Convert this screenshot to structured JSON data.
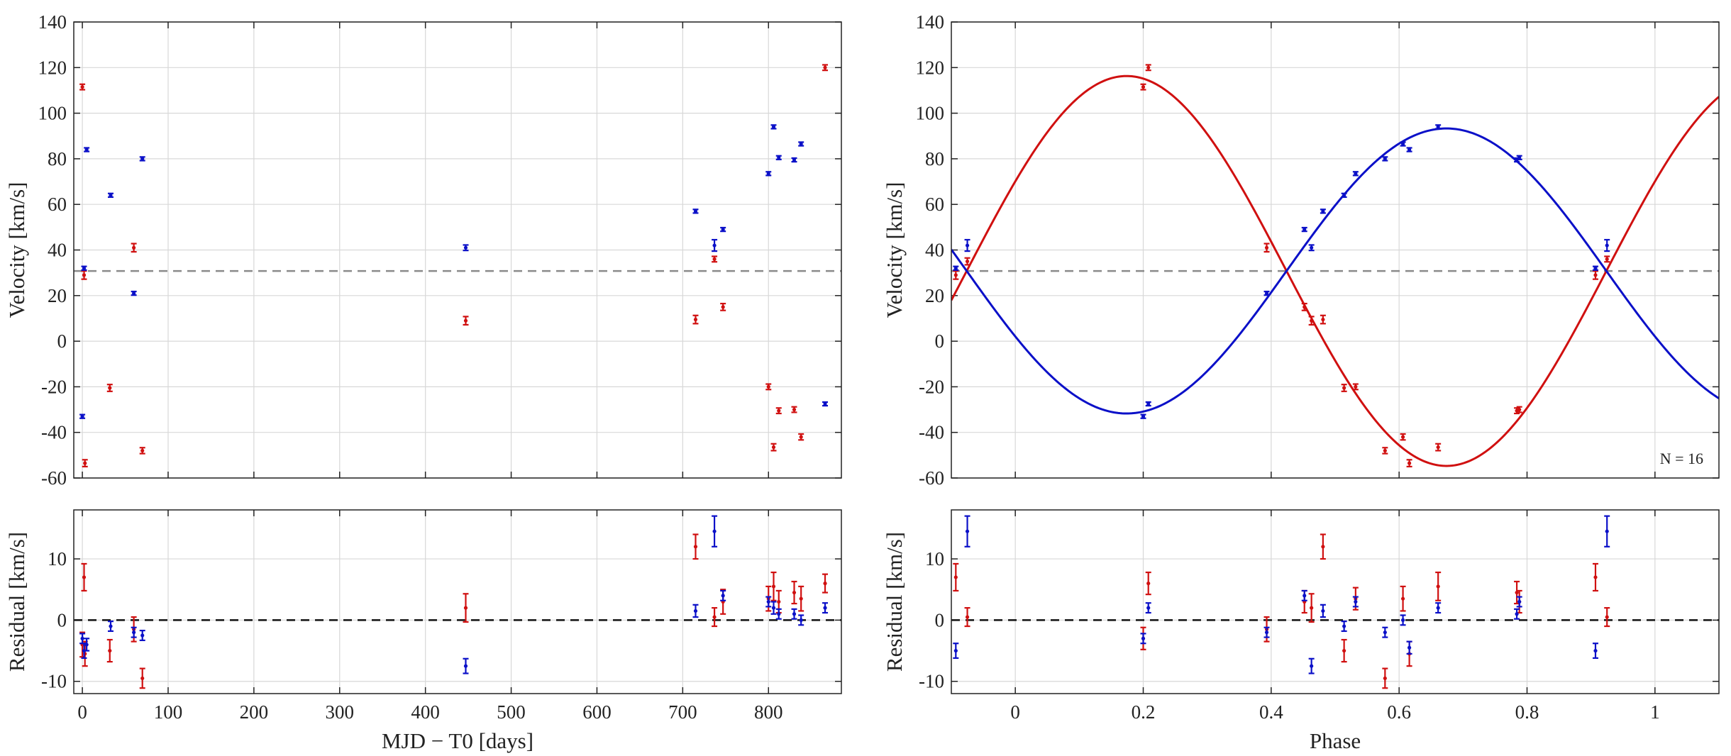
{
  "colors": {
    "primary": "#d01010",
    "secondary": "#0b10c8",
    "systemic": "#8a8a8a",
    "zero": "#111111"
  },
  "chart_data": [
    {
      "id": "rv-time",
      "type": "scatter",
      "title": "",
      "xlabel": "MJD − T0 [days]",
      "ylabel": "Velocity [km/s]",
      "xlim": [
        -10,
        885
      ],
      "ylim": [
        -60,
        140
      ],
      "xticks": [
        0,
        100,
        200,
        300,
        400,
        500,
        600,
        700,
        800
      ],
      "yticks": [
        -60,
        -40,
        -20,
        0,
        20,
        40,
        60,
        80,
        100,
        120,
        140
      ],
      "grid": true,
      "systemic_velocity": 30.8,
      "series": [
        {
          "name": "primary",
          "color": "#d01010",
          "points": [
            [
              0,
              111.5,
              1.2
            ],
            [
              2,
              29,
              1.8
            ],
            [
              3,
              -53.5,
              1.5
            ],
            [
              32,
              -20.5,
              1.5
            ],
            [
              60,
              41,
              1.8
            ],
            [
              70,
              -48,
              1.3
            ],
            [
              447,
              9,
              1.8
            ],
            [
              715,
              9.5,
              1.8
            ],
            [
              737,
              36,
              1.2
            ],
            [
              747,
              15,
              1.5
            ],
            [
              800,
              -20,
              1.2
            ],
            [
              806,
              -46.5,
              1.5
            ],
            [
              812,
              -30.5,
              1.2
            ],
            [
              830,
              -30,
              1.2
            ],
            [
              838,
              -42,
              1.3
            ],
            [
              866,
              120,
              1.2
            ]
          ]
        },
        {
          "name": "secondary",
          "color": "#0b10c8",
          "points": [
            [
              0,
              -33,
              0.8
            ],
            [
              2,
              32,
              0.8
            ],
            [
              5,
              84,
              0.8
            ],
            [
              33,
              64,
              0.8
            ],
            [
              60,
              21,
              0.8
            ],
            [
              70,
              80,
              0.8
            ],
            [
              447,
              41,
              1.2
            ],
            [
              715,
              57,
              0.8
            ],
            [
              737,
              42,
              2.5
            ],
            [
              747,
              49,
              0.8
            ],
            [
              800,
              73.5,
              0.8
            ],
            [
              806,
              94,
              0.8
            ],
            [
              812,
              80.5,
              0.8
            ],
            [
              830,
              79.5,
              0.8
            ],
            [
              838,
              86.5,
              0.8
            ],
            [
              866,
              -27.5,
              0.8
            ]
          ]
        }
      ]
    },
    {
      "id": "rv-phase",
      "type": "scatter",
      "title": "",
      "xlabel": "Phase",
      "ylabel": "Velocity [km/s]",
      "xlim": [
        -0.1,
        1.1
      ],
      "ylim": [
        -60,
        140
      ],
      "xticks": [
        0,
        0.2,
        0.4,
        0.6,
        0.8,
        1
      ],
      "yticks": [
        -60,
        -40,
        -20,
        0,
        20,
        40,
        60,
        80,
        100,
        120,
        140
      ],
      "grid": true,
      "systemic_velocity": 30.8,
      "annotation": "N = 16",
      "model": {
        "gamma": 30.8,
        "K1": 85.5,
        "K2": 62.5,
        "phase_of_min_primary": 0.674
      },
      "series": [
        {
          "name": "primary",
          "color": "#d01010",
          "points": [
            [
              -0.093,
              29,
              1.8
            ],
            [
              -0.075,
              35,
              1.5
            ],
            [
              0.2,
              111.5,
              1.2
            ],
            [
              0.208,
              120,
              1.2
            ],
            [
              0.393,
              41,
              1.8
            ],
            [
              0.452,
              15,
              1.5
            ],
            [
              0.463,
              9,
              1.8
            ],
            [
              0.481,
              9.5,
              1.8
            ],
            [
              0.514,
              -20.5,
              1.5
            ],
            [
              0.532,
              -20,
              1.2
            ],
            [
              0.578,
              -48,
              1.3
            ],
            [
              0.606,
              -42,
              1.3
            ],
            [
              0.616,
              -53.5,
              1.5
            ],
            [
              0.661,
              -46.5,
              1.5
            ],
            [
              0.784,
              -30.5,
              1.2
            ],
            [
              0.788,
              -30,
              1.2
            ],
            [
              0.907,
              29,
              1.8
            ],
            [
              0.925,
              36,
              1.2
            ]
          ]
        },
        {
          "name": "secondary",
          "color": "#0b10c8",
          "points": [
            [
              -0.093,
              32,
              0.8
            ],
            [
              -0.075,
              42,
              2.5
            ],
            [
              0.2,
              -33,
              0.8
            ],
            [
              0.208,
              -27.5,
              0.8
            ],
            [
              0.393,
              21,
              0.8
            ],
            [
              0.452,
              49,
              0.8
            ],
            [
              0.463,
              41,
              1.2
            ],
            [
              0.481,
              57,
              0.8
            ],
            [
              0.514,
              64,
              0.8
            ],
            [
              0.532,
              73.5,
              0.8
            ],
            [
              0.578,
              80,
              0.8
            ],
            [
              0.606,
              86.5,
              0.8
            ],
            [
              0.616,
              84,
              0.8
            ],
            [
              0.661,
              94,
              0.8
            ],
            [
              0.784,
              79.5,
              0.8
            ],
            [
              0.788,
              80.5,
              0.8
            ],
            [
              0.907,
              32,
              0.8
            ],
            [
              0.925,
              42,
              2.5
            ]
          ]
        }
      ]
    },
    {
      "id": "resid-time",
      "type": "scatter",
      "title": "",
      "xlabel": "MJD − T0 [days]",
      "ylabel": "Residual [km/s]",
      "xlim": [
        -10,
        885
      ],
      "ylim": [
        -12,
        18
      ],
      "xticks": [
        0,
        100,
        200,
        300,
        400,
        500,
        600,
        700,
        800
      ],
      "yticks": [
        -10,
        0,
        10
      ],
      "grid": true,
      "zero_line": 0,
      "series": [
        {
          "name": "primary",
          "color": "#d01010",
          "points": [
            [
              0,
              -4,
              2
            ],
            [
              2,
              7,
              2.2
            ],
            [
              3,
              -5.5,
              2
            ],
            [
              32,
              -5,
              1.8
            ],
            [
              60,
              -1.5,
              2
            ],
            [
              70,
              -9.5,
              1.6
            ],
            [
              447,
              2,
              2.3
            ],
            [
              715,
              12,
              2
            ],
            [
              737,
              0.5,
              1.5
            ],
            [
              747,
              3,
              2
            ],
            [
              800,
              3.5,
              2
            ],
            [
              806,
              5.5,
              2.3
            ],
            [
              812,
              3,
              1.8
            ],
            [
              830,
              4.5,
              1.8
            ],
            [
              838,
              3.5,
              2
            ],
            [
              866,
              6,
              1.5
            ]
          ]
        },
        {
          "name": "secondary",
          "color": "#0b10c8",
          "points": [
            [
              0,
              -3,
              0.8
            ],
            [
              2,
              -5,
              1.2
            ],
            [
              5,
              -4,
              1
            ],
            [
              33,
              -1,
              0.8
            ],
            [
              60,
              -2,
              0.8
            ],
            [
              70,
              -2.5,
              0.8
            ],
            [
              447,
              -7.5,
              1.2
            ],
            [
              715,
              1.5,
              1
            ],
            [
              737,
              14.5,
              2.5
            ],
            [
              747,
              4,
              0.8
            ],
            [
              800,
              3,
              0.8
            ],
            [
              806,
              2,
              1
            ],
            [
              812,
              1,
              0.8
            ],
            [
              830,
              1,
              0.8
            ],
            [
              838,
              0,
              0.8
            ],
            [
              866,
              2,
              0.8
            ]
          ]
        }
      ]
    },
    {
      "id": "resid-phase",
      "type": "scatter",
      "title": "",
      "xlabel": "Phase",
      "ylabel": "Residual [km/s]",
      "xlim": [
        -0.1,
        1.1
      ],
      "ylim": [
        -12,
        18
      ],
      "xticks": [
        0,
        0.2,
        0.4,
        0.6,
        0.8,
        1
      ],
      "yticks": [
        -10,
        0,
        10
      ],
      "grid": true,
      "zero_line": 0,
      "series": [
        {
          "name": "primary",
          "color": "#d01010",
          "points": [
            [
              -0.093,
              7,
              2.2
            ],
            [
              -0.075,
              0.5,
              1.5
            ],
            [
              0.2,
              -3,
              1.8
            ],
            [
              0.208,
              6,
              1.8
            ],
            [
              0.393,
              -1.5,
              2
            ],
            [
              0.452,
              3,
              1.8
            ],
            [
              0.463,
              2,
              2.3
            ],
            [
              0.481,
              12,
              2
            ],
            [
              0.514,
              -5,
              1.8
            ],
            [
              0.532,
              3.5,
              1.8
            ],
            [
              0.578,
              -9.5,
              1.6
            ],
            [
              0.606,
              3.5,
              2
            ],
            [
              0.616,
              -5.5,
              2
            ],
            [
              0.661,
              5.5,
              2.3
            ],
            [
              0.784,
              4.5,
              1.8
            ],
            [
              0.788,
              3,
              1.8
            ],
            [
              0.907,
              7,
              2.2
            ],
            [
              0.925,
              0.5,
              1.5
            ]
          ]
        },
        {
          "name": "secondary",
          "color": "#0b10c8",
          "points": [
            [
              -0.093,
              -5,
              1.2
            ],
            [
              -0.075,
              14.5,
              2.5
            ],
            [
              0.2,
              -3,
              0.8
            ],
            [
              0.208,
              2,
              0.8
            ],
            [
              0.393,
              -2,
              0.8
            ],
            [
              0.452,
              4,
              0.8
            ],
            [
              0.463,
              -7.5,
              1.2
            ],
            [
              0.481,
              1.5,
              1
            ],
            [
              0.514,
              -1,
              0.8
            ],
            [
              0.532,
              3,
              0.8
            ],
            [
              0.578,
              -2,
              0.8
            ],
            [
              0.606,
              0,
              0.8
            ],
            [
              0.616,
              -4.5,
              1
            ],
            [
              0.661,
              2,
              0.8
            ],
            [
              0.784,
              1,
              0.8
            ],
            [
              0.788,
              3,
              0.8
            ],
            [
              0.907,
              -5,
              1.2
            ],
            [
              0.925,
              14.5,
              2.5
            ]
          ]
        }
      ]
    }
  ]
}
